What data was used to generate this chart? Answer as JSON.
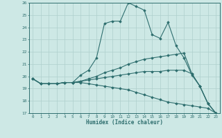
{
  "x": [
    0,
    1,
    2,
    3,
    4,
    5,
    6,
    7,
    8,
    9,
    10,
    11,
    12,
    13,
    14,
    15,
    16,
    17,
    18,
    19,
    20,
    21,
    22,
    23
  ],
  "line1": [
    19.8,
    19.4,
    19.4,
    19.4,
    19.5,
    19.5,
    20.1,
    20.5,
    21.5,
    24.3,
    24.5,
    24.5,
    26.0,
    25.7,
    25.4,
    23.4,
    23.1,
    24.4,
    22.5,
    21.5,
    20.1,
    19.2,
    17.8,
    17.0
  ],
  "line2": [
    19.8,
    19.4,
    19.4,
    19.4,
    19.5,
    19.5,
    19.6,
    19.8,
    20.0,
    20.3,
    20.5,
    20.7,
    21.0,
    21.2,
    21.4,
    21.5,
    21.6,
    21.7,
    21.8,
    21.9,
    20.2,
    19.2,
    17.8,
    17.0
  ],
  "line3": [
    19.8,
    19.4,
    19.4,
    19.4,
    19.5,
    19.5,
    19.6,
    19.7,
    19.8,
    19.9,
    20.0,
    20.1,
    20.2,
    20.3,
    20.4,
    20.4,
    20.4,
    20.5,
    20.5,
    20.5,
    20.2,
    19.2,
    17.8,
    17.0
  ],
  "line4": [
    19.8,
    19.4,
    19.4,
    19.4,
    19.5,
    19.5,
    19.5,
    19.4,
    19.3,
    19.2,
    19.1,
    19.0,
    18.9,
    18.7,
    18.5,
    18.3,
    18.1,
    17.9,
    17.8,
    17.7,
    17.6,
    17.5,
    17.4,
    17.0
  ],
  "line_color": "#2e6e6e",
  "bg_color": "#cde8e5",
  "grid_color": "#aecfcc",
  "xlabel": "Humidex (Indice chaleur)",
  "ylim": [
    17,
    26
  ],
  "xlim": [
    -0.5,
    23.5
  ],
  "yticks": [
    17,
    18,
    19,
    20,
    21,
    22,
    23,
    24,
    25,
    26
  ],
  "xticks": [
    0,
    1,
    2,
    3,
    4,
    5,
    6,
    7,
    8,
    9,
    10,
    11,
    12,
    13,
    14,
    15,
    16,
    17,
    18,
    19,
    20,
    21,
    22,
    23
  ]
}
